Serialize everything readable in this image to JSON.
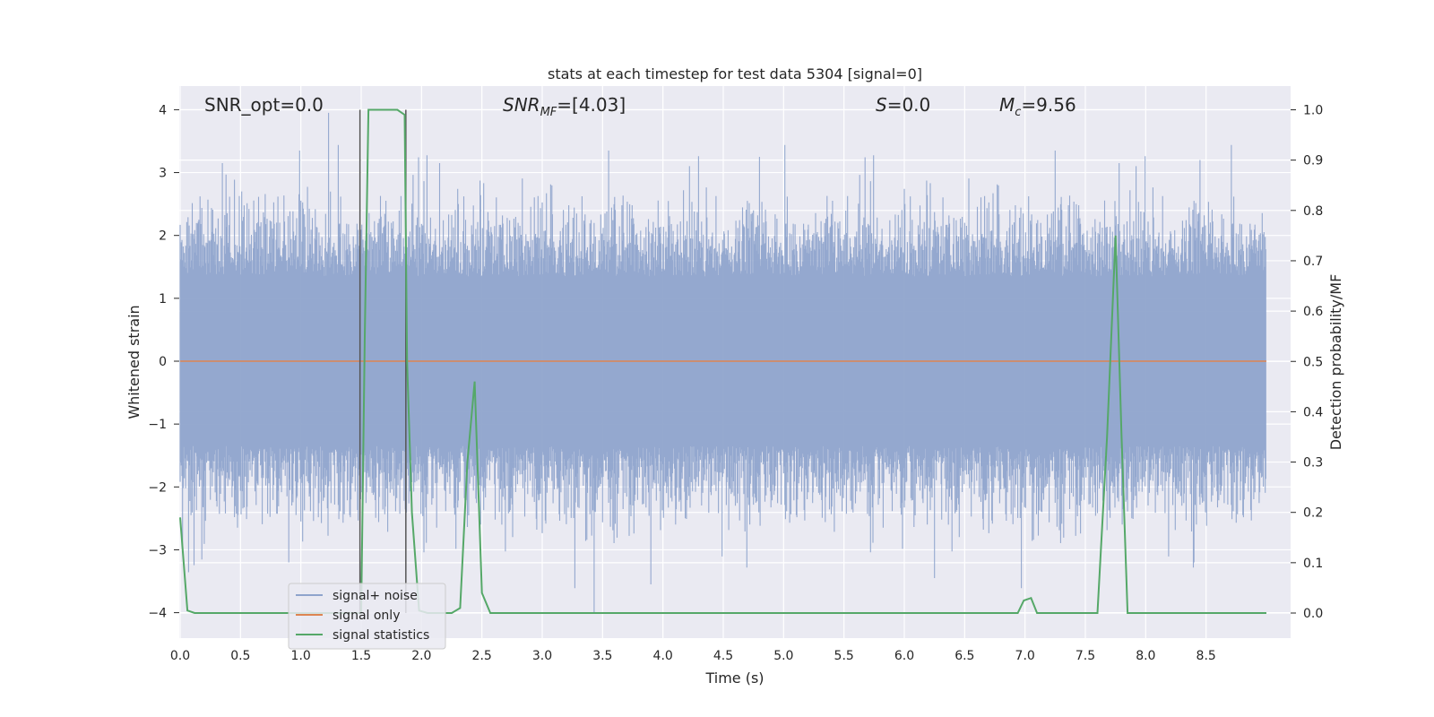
{
  "chart_data": {
    "type": "line",
    "title": "stats at each timestep for test data 5304 [signal=0]",
    "xlabel": "Time (s)",
    "ylabel_left": "Whitened strain",
    "ylabel_right": "Detection probability/MF",
    "xlim": [
      0,
      9.0
    ],
    "ylim_left": [
      -4.4,
      4.4
    ],
    "ylim_right": [
      -0.05,
      1.05
    ],
    "x_ticks": [
      0.0,
      0.5,
      1.0,
      1.5,
      2.0,
      2.5,
      3.0,
      3.5,
      4.0,
      4.5,
      5.0,
      5.5,
      6.0,
      6.5,
      7.0,
      7.5,
      8.0,
      8.5
    ],
    "x_tick_labels": [
      "0.0",
      "0.5",
      "1.0",
      "1.5",
      "2.0",
      "2.5",
      "3.0",
      "3.5",
      "4.0",
      "4.5",
      "5.0",
      "5.5",
      "6.0",
      "6.5",
      "7.0",
      "7.5",
      "8.0",
      "8.5"
    ],
    "y_left_ticks": [
      -4,
      -3,
      -2,
      -1,
      0,
      1,
      2,
      3,
      4
    ],
    "y_left_tick_labels": [
      "−4",
      "−3",
      "−2",
      "−1",
      "0",
      "1",
      "2",
      "3",
      "4"
    ],
    "y_right_ticks": [
      0.0,
      0.1,
      0.2,
      0.3,
      0.4,
      0.5,
      0.6,
      0.7,
      0.8,
      0.9,
      1.0
    ],
    "y_right_tick_labels": [
      "0.0",
      "0.1",
      "0.2",
      "0.3",
      "0.4",
      "0.5",
      "0.6",
      "0.7",
      "0.8",
      "0.9",
      "1.0"
    ],
    "grid": true,
    "legend": {
      "placement": "lower-left",
      "entries": [
        {
          "label": "signal+ noise",
          "color": "#8fa4cc"
        },
        {
          "label": "signal only",
          "color": "#dd8452"
        },
        {
          "label": "signal statistics",
          "color": "#55a868"
        }
      ]
    },
    "annotations": {
      "snr_opt": "SNR_opt=0.0",
      "snr_mf_main": "SNR",
      "snr_mf_sub": "MF",
      "snr_mf_value": "=[4.03]",
      "s_main": "S",
      "s_value": "=0.0",
      "mc_main": "M",
      "mc_sub": "c",
      "mc_value": "=9.56"
    },
    "series": [
      {
        "name": "signal+ noise",
        "axis": "left",
        "color": "#8fa4cc",
        "style": "dense noise, amplitude approx. ±2.5 with peaks near ±4",
        "peaks": [
          {
            "x": 1.23,
            "y": 3.95
          },
          {
            "x": 0.99,
            "y": 3.35
          },
          {
            "x": 0.35,
            "y": 3.15
          },
          {
            "x": 2.15,
            "y": 3.15
          },
          {
            "x": 4.8,
            "y": 3.25
          },
          {
            "x": 7.78,
            "y": 3.15
          },
          {
            "x": 8.45,
            "y": 3.2
          },
          {
            "x": 3.43,
            "y": -4.0
          },
          {
            "x": 3.9,
            "y": -3.55
          },
          {
            "x": 6.25,
            "y": -3.45
          },
          {
            "x": 8.4,
            "y": -3.2
          },
          {
            "x": 0.9,
            "y": -3.2
          }
        ]
      },
      {
        "name": "signal only",
        "axis": "left",
        "color": "#dd8452",
        "x": [
          0,
          9.0
        ],
        "y": [
          0,
          0
        ]
      },
      {
        "name": "signal statistics",
        "axis": "right",
        "color": "#55a868",
        "x": [
          0.0,
          0.06,
          0.12,
          1.5,
          1.53,
          1.56,
          1.6,
          1.8,
          1.86,
          1.88,
          1.92,
          1.98,
          2.05,
          2.25,
          2.32,
          2.38,
          2.44,
          2.5,
          2.57,
          6.94,
          6.99,
          7.05,
          7.1,
          7.6,
          7.68,
          7.75,
          7.8,
          7.85,
          9.0
        ],
        "y": [
          0.19,
          0.005,
          0.0,
          0.0,
          0.55,
          1.0,
          1.0,
          1.0,
          0.99,
          0.5,
          0.2,
          0.005,
          0.0,
          0.0,
          0.01,
          0.3,
          0.46,
          0.04,
          0.0,
          0.0,
          0.025,
          0.03,
          0.0,
          0.0,
          0.35,
          0.75,
          0.35,
          0.0,
          0.0
        ]
      }
    ],
    "vertical_markers": [
      {
        "x": 1.49,
        "color": "#555555"
      },
      {
        "x": 1.87,
        "color": "#555555"
      }
    ]
  }
}
